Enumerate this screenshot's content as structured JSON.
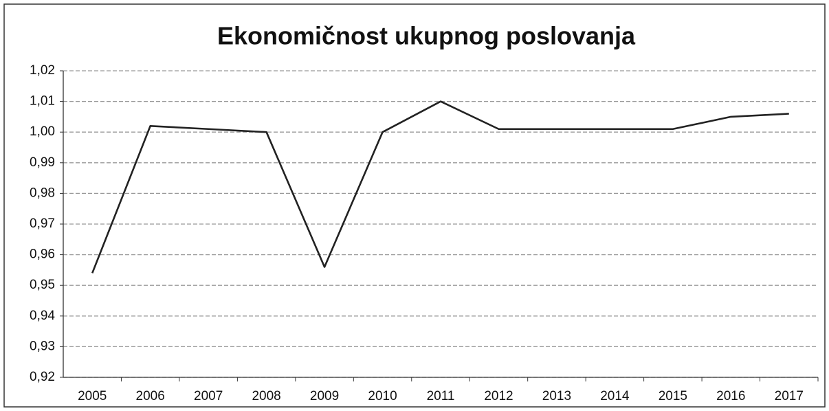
{
  "chart_data": {
    "type": "line",
    "title": "Ekonomičnost ukupnog poslovanja",
    "categories": [
      "2005",
      "2006",
      "2007",
      "2008",
      "2009",
      "2010",
      "2011",
      "2012",
      "2013",
      "2014",
      "2015",
      "2016",
      "2017"
    ],
    "series": [
      {
        "name": "Ekonomičnost ukupnog poslovanja",
        "color": "#222222",
        "values": [
          0.954,
          1.002,
          1.001,
          1.0,
          0.956,
          1.0,
          1.01,
          1.001,
          1.001,
          1.001,
          1.001,
          1.005,
          1.006
        ]
      }
    ],
    "ylim": [
      0.92,
      1.02
    ],
    "yticks": [
      {
        "value": 0.92,
        "label": "0,92"
      },
      {
        "value": 0.93,
        "label": "0,93"
      },
      {
        "value": 0.94,
        "label": "0,94"
      },
      {
        "value": 0.95,
        "label": "0,95"
      },
      {
        "value": 0.96,
        "label": "0,96"
      },
      {
        "value": 0.97,
        "label": "0,97"
      },
      {
        "value": 0.98,
        "label": "0,98"
      },
      {
        "value": 0.99,
        "label": "0,99"
      },
      {
        "value": 1.0,
        "label": "1,00"
      },
      {
        "value": 1.01,
        "label": "1,01"
      },
      {
        "value": 1.02,
        "label": "1,02"
      }
    ],
    "grid": true
  }
}
